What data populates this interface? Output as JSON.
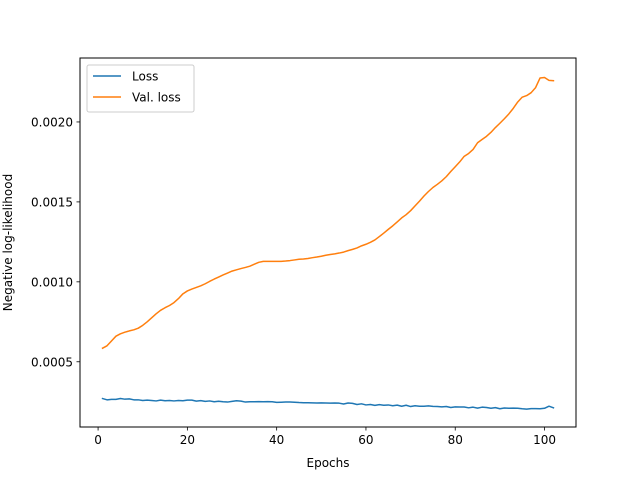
{
  "chart_data": {
    "type": "line",
    "xlabel": "Epochs",
    "ylabel": "Negative log-likelihood",
    "xlim": [
      -4.05,
      107.05
    ],
    "ylim": [
      9.2e-05,
      0.0024
    ],
    "xticks": [
      0,
      20,
      40,
      60,
      80,
      100
    ],
    "yticks": [
      0.0005,
      0.001,
      0.0015,
      0.002
    ],
    "xtick_labels": [
      "0",
      "20",
      "40",
      "60",
      "80",
      "100"
    ],
    "ytick_labels": [
      "0.0005",
      "0.0010",
      "0.0015",
      "0.0020"
    ],
    "legend_position": "top-left",
    "grid": false,
    "series": [
      {
        "name": "Loss",
        "color": "#1f77b4",
        "x": [
          1,
          2,
          3,
          4,
          5,
          6,
          7,
          8,
          9,
          10,
          11,
          12,
          13,
          14,
          15,
          16,
          17,
          18,
          19,
          20,
          21,
          22,
          23,
          24,
          25,
          26,
          27,
          28,
          29,
          30,
          31,
          32,
          33,
          34,
          35,
          36,
          37,
          38,
          39,
          40,
          41,
          42,
          43,
          44,
          45,
          46,
          47,
          48,
          49,
          50,
          51,
          52,
          53,
          54,
          55,
          56,
          57,
          58,
          59,
          60,
          61,
          62,
          63,
          64,
          65,
          66,
          67,
          68,
          69,
          70,
          71,
          72,
          73,
          74,
          75,
          76,
          77,
          78,
          79,
          80,
          81,
          82,
          83,
          84,
          85,
          86,
          87,
          88,
          89,
          90,
          91,
          92,
          93,
          94,
          95,
          96,
          97,
          98,
          99,
          100,
          101,
          102
        ],
        "y": [
          0.00027,
          0.000262,
          0.000265,
          0.000265,
          0.00027,
          0.000266,
          0.000268,
          0.000262,
          0.000262,
          0.000258,
          0.00026,
          0.000258,
          0.000255,
          0.00026,
          0.000256,
          0.000258,
          0.000255,
          0.000258,
          0.000256,
          0.00026,
          0.00026,
          0.000254,
          0.000257,
          0.000252,
          0.000255,
          0.00025,
          0.000253,
          0.00025,
          0.000248,
          0.000252,
          0.000256,
          0.000254,
          0.000248,
          0.00025,
          0.00025,
          0.000251,
          0.00025,
          0.000251,
          0.00025,
          0.000246,
          0.000247,
          0.000248,
          0.000248,
          0.000247,
          0.000245,
          0.000244,
          0.000244,
          0.000243,
          0.000242,
          0.000243,
          0.000242,
          0.000241,
          0.000242,
          0.000241,
          0.000236,
          0.000242,
          0.00024,
          0.000233,
          0.000237,
          0.00023,
          0.000233,
          0.000227,
          0.000232,
          0.000228,
          0.00023,
          0.000225,
          0.000229,
          0.000222,
          0.000228,
          0.00022,
          0.000225,
          0.000222,
          0.000222,
          0.000224,
          0.000221,
          0.00022,
          0.000218,
          0.00022,
          0.000214,
          0.000218,
          0.000217,
          0.000217,
          0.000212,
          0.000216,
          0.00021,
          0.000216,
          0.000214,
          0.000209,
          0.000213,
          0.000206,
          0.000211,
          0.000209,
          0.00021,
          0.000209,
          0.000206,
          0.000204,
          0.000207,
          0.000207,
          0.000206,
          0.000209,
          0.000222,
          0.000212
        ]
      },
      {
        "name": "Val. loss",
        "color": "#ff7f0e",
        "x": [
          1,
          2,
          3,
          4,
          5,
          6,
          7,
          8,
          9,
          10,
          11,
          12,
          13,
          14,
          15,
          16,
          17,
          18,
          19,
          20,
          21,
          22,
          23,
          24,
          25,
          26,
          27,
          28,
          29,
          30,
          31,
          32,
          33,
          34,
          35,
          36,
          37,
          38,
          39,
          40,
          41,
          42,
          43,
          44,
          45,
          46,
          47,
          48,
          49,
          50,
          51,
          52,
          53,
          54,
          55,
          56,
          57,
          58,
          59,
          60,
          61,
          62,
          63,
          64,
          65,
          66,
          67,
          68,
          69,
          70,
          71,
          72,
          73,
          74,
          75,
          76,
          77,
          78,
          79,
          80,
          81,
          82,
          83,
          84,
          85,
          86,
          87,
          88,
          89,
          90,
          91,
          92,
          93,
          94,
          95,
          96,
          97,
          98,
          99,
          100,
          101,
          102
        ],
        "y": [
          0.000585,
          0.0006,
          0.00063,
          0.00066,
          0.000675,
          0.000685,
          0.000693,
          0.0007,
          0.00071,
          0.000728,
          0.00075,
          0.000775,
          0.0008,
          0.000822,
          0.000838,
          0.000852,
          0.00087,
          0.000895,
          0.000925,
          0.000943,
          0.000955,
          0.000965,
          0.000975,
          0.000988,
          0.001003,
          0.001017,
          0.00103,
          0.001043,
          0.001055,
          0.001067,
          0.001075,
          0.001083,
          0.00109,
          0.001098,
          0.00111,
          0.001122,
          0.001128,
          0.001128,
          0.001128,
          0.001128,
          0.001128,
          0.00113,
          0.001133,
          0.001137,
          0.001141,
          0.001143,
          0.001146,
          0.001151,
          0.001155,
          0.00116,
          0.001166,
          0.001171,
          0.001175,
          0.00118,
          0.001186,
          0.001195,
          0.001203,
          0.001212,
          0.001225,
          0.001235,
          0.001247,
          0.001262,
          0.001283,
          0.001305,
          0.001328,
          0.00135,
          0.001375,
          0.0014,
          0.00142,
          0.001445,
          0.001475,
          0.001505,
          0.001537,
          0.001565,
          0.00159,
          0.00161,
          0.001632,
          0.001658,
          0.00169,
          0.00172,
          0.00175,
          0.001785,
          0.001803,
          0.001828,
          0.00187,
          0.00189,
          0.00191,
          0.001935,
          0.001965,
          0.001992,
          0.00202,
          0.00205,
          0.002085,
          0.002125,
          0.002155,
          0.002165,
          0.002183,
          0.002215,
          0.002275,
          0.002278,
          0.00226,
          0.002258
        ]
      }
    ]
  }
}
